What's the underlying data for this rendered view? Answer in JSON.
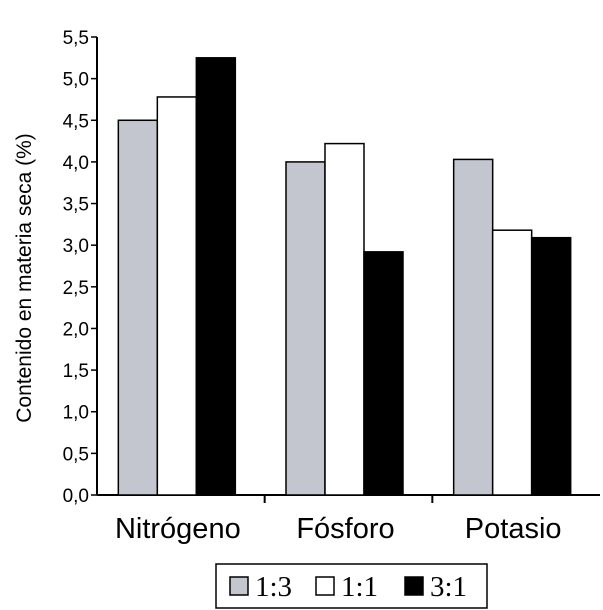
{
  "chart_data": {
    "type": "bar",
    "categories": [
      "Nitrógeno",
      "Fósforo",
      "Potasio"
    ],
    "series": [
      {
        "name": "1:3",
        "values": [
          4.5,
          4.0,
          4.03
        ],
        "color": "#c3c6cf"
      },
      {
        "name": "1:1",
        "values": [
          4.78,
          4.22,
          3.18
        ],
        "color": "#ffffff"
      },
      {
        "name": "3:1",
        "values": [
          5.25,
          2.92,
          3.09
        ],
        "color": "#000000"
      }
    ],
    "title": "",
    "xlabel": "",
    "ylabel": "Contenido en materia seca (%)",
    "ylim": [
      0,
      5.5
    ],
    "yticks": [
      "0,0",
      "0,5",
      "1,0",
      "1,5",
      "2,0",
      "2,5",
      "3,0",
      "3,5",
      "4,0",
      "4,5",
      "5,0",
      "5,5"
    ],
    "grid": false,
    "legend_position": "bottom"
  }
}
